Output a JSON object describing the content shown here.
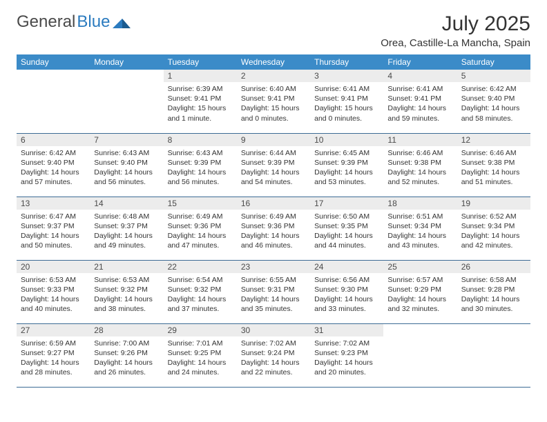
{
  "logo": {
    "text1": "General",
    "text2": "Blue"
  },
  "header": {
    "month_title": "July 2025",
    "location": "Orea, Castille-La Mancha, Spain"
  },
  "colors": {
    "header_bg": "#3b8bc8",
    "header_text": "#ffffff",
    "daynum_bg": "#ececec",
    "border": "#3b6a94",
    "logo_blue": "#2b7bbf",
    "text": "#333333"
  },
  "day_headers": [
    "Sunday",
    "Monday",
    "Tuesday",
    "Wednesday",
    "Thursday",
    "Friday",
    "Saturday"
  ],
  "weeks": [
    [
      {
        "n": "",
        "empty": true
      },
      {
        "n": "",
        "empty": true
      },
      {
        "n": "1",
        "sr": "6:39 AM",
        "ss": "9:41 PM",
        "dl": "15 hours and 1 minute."
      },
      {
        "n": "2",
        "sr": "6:40 AM",
        "ss": "9:41 PM",
        "dl": "15 hours and 0 minutes."
      },
      {
        "n": "3",
        "sr": "6:41 AM",
        "ss": "9:41 PM",
        "dl": "15 hours and 0 minutes."
      },
      {
        "n": "4",
        "sr": "6:41 AM",
        "ss": "9:41 PM",
        "dl": "14 hours and 59 minutes."
      },
      {
        "n": "5",
        "sr": "6:42 AM",
        "ss": "9:40 PM",
        "dl": "14 hours and 58 minutes."
      }
    ],
    [
      {
        "n": "6",
        "sr": "6:42 AM",
        "ss": "9:40 PM",
        "dl": "14 hours and 57 minutes."
      },
      {
        "n": "7",
        "sr": "6:43 AM",
        "ss": "9:40 PM",
        "dl": "14 hours and 56 minutes."
      },
      {
        "n": "8",
        "sr": "6:43 AM",
        "ss": "9:39 PM",
        "dl": "14 hours and 56 minutes."
      },
      {
        "n": "9",
        "sr": "6:44 AM",
        "ss": "9:39 PM",
        "dl": "14 hours and 54 minutes."
      },
      {
        "n": "10",
        "sr": "6:45 AM",
        "ss": "9:39 PM",
        "dl": "14 hours and 53 minutes."
      },
      {
        "n": "11",
        "sr": "6:46 AM",
        "ss": "9:38 PM",
        "dl": "14 hours and 52 minutes."
      },
      {
        "n": "12",
        "sr": "6:46 AM",
        "ss": "9:38 PM",
        "dl": "14 hours and 51 minutes."
      }
    ],
    [
      {
        "n": "13",
        "sr": "6:47 AM",
        "ss": "9:37 PM",
        "dl": "14 hours and 50 minutes."
      },
      {
        "n": "14",
        "sr": "6:48 AM",
        "ss": "9:37 PM",
        "dl": "14 hours and 49 minutes."
      },
      {
        "n": "15",
        "sr": "6:49 AM",
        "ss": "9:36 PM",
        "dl": "14 hours and 47 minutes."
      },
      {
        "n": "16",
        "sr": "6:49 AM",
        "ss": "9:36 PM",
        "dl": "14 hours and 46 minutes."
      },
      {
        "n": "17",
        "sr": "6:50 AM",
        "ss": "9:35 PM",
        "dl": "14 hours and 44 minutes."
      },
      {
        "n": "18",
        "sr": "6:51 AM",
        "ss": "9:34 PM",
        "dl": "14 hours and 43 minutes."
      },
      {
        "n": "19",
        "sr": "6:52 AM",
        "ss": "9:34 PM",
        "dl": "14 hours and 42 minutes."
      }
    ],
    [
      {
        "n": "20",
        "sr": "6:53 AM",
        "ss": "9:33 PM",
        "dl": "14 hours and 40 minutes."
      },
      {
        "n": "21",
        "sr": "6:53 AM",
        "ss": "9:32 PM",
        "dl": "14 hours and 38 minutes."
      },
      {
        "n": "22",
        "sr": "6:54 AM",
        "ss": "9:32 PM",
        "dl": "14 hours and 37 minutes."
      },
      {
        "n": "23",
        "sr": "6:55 AM",
        "ss": "9:31 PM",
        "dl": "14 hours and 35 minutes."
      },
      {
        "n": "24",
        "sr": "6:56 AM",
        "ss": "9:30 PM",
        "dl": "14 hours and 33 minutes."
      },
      {
        "n": "25",
        "sr": "6:57 AM",
        "ss": "9:29 PM",
        "dl": "14 hours and 32 minutes."
      },
      {
        "n": "26",
        "sr": "6:58 AM",
        "ss": "9:28 PM",
        "dl": "14 hours and 30 minutes."
      }
    ],
    [
      {
        "n": "27",
        "sr": "6:59 AM",
        "ss": "9:27 PM",
        "dl": "14 hours and 28 minutes."
      },
      {
        "n": "28",
        "sr": "7:00 AM",
        "ss": "9:26 PM",
        "dl": "14 hours and 26 minutes."
      },
      {
        "n": "29",
        "sr": "7:01 AM",
        "ss": "9:25 PM",
        "dl": "14 hours and 24 minutes."
      },
      {
        "n": "30",
        "sr": "7:02 AM",
        "ss": "9:24 PM",
        "dl": "14 hours and 22 minutes."
      },
      {
        "n": "31",
        "sr": "7:02 AM",
        "ss": "9:23 PM",
        "dl": "14 hours and 20 minutes."
      },
      {
        "n": "",
        "empty": true
      },
      {
        "n": "",
        "empty": true
      }
    ]
  ],
  "labels": {
    "sunrise_prefix": "Sunrise: ",
    "sunset_prefix": "Sunset: ",
    "daylight_prefix": "Daylight: "
  }
}
